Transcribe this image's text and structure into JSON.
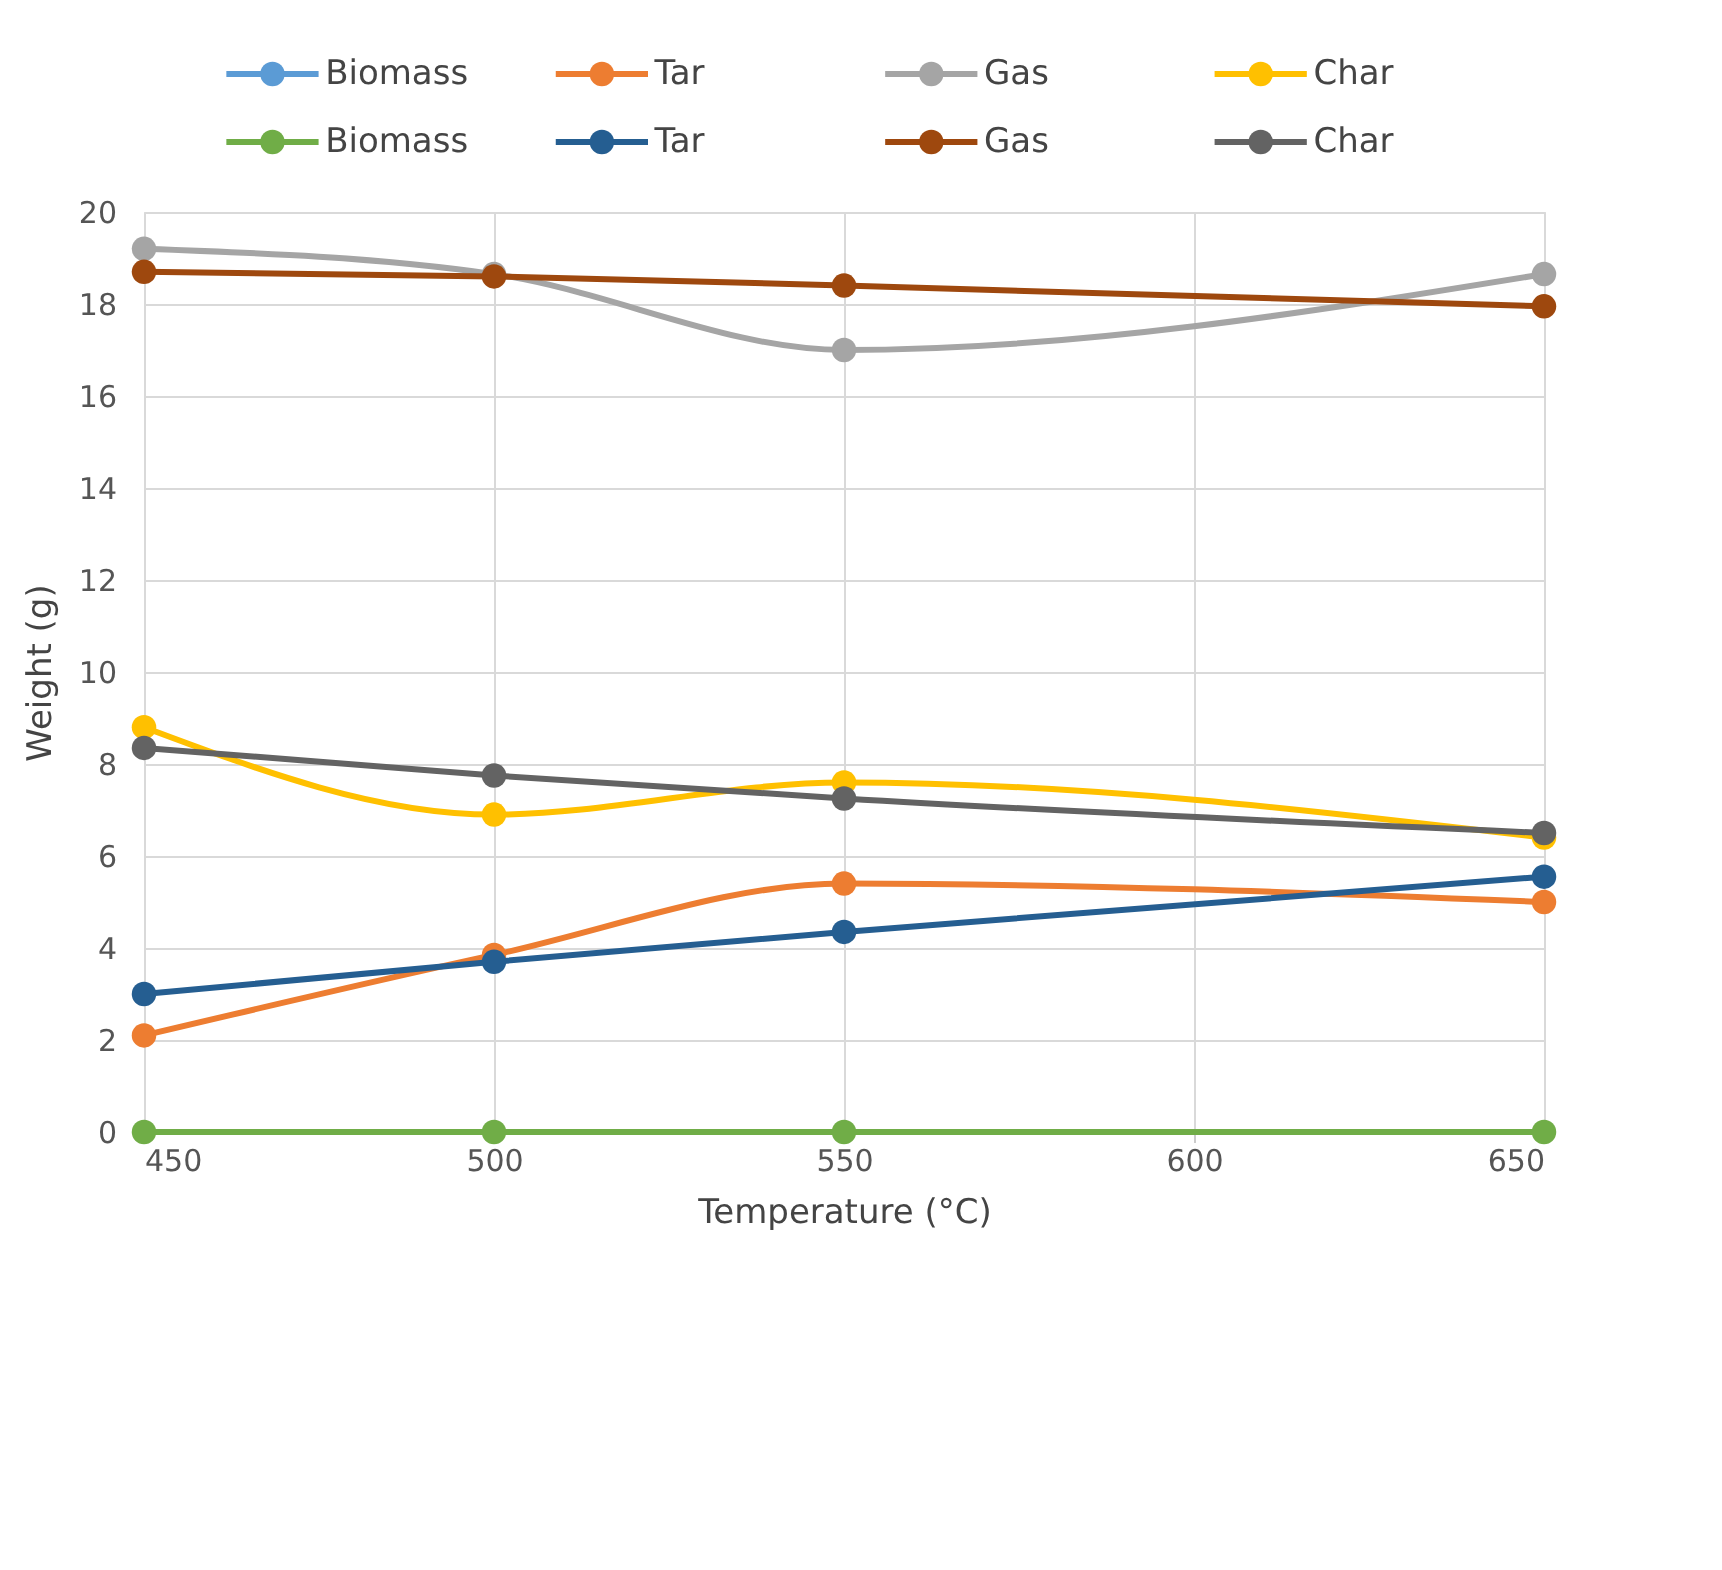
{
  "chart_data": {
    "type": "line",
    "xlabel": "Temperature (°C)",
    "ylabel": "Weight (g)",
    "x": [
      450,
      500,
      550,
      650
    ],
    "xlim": [
      450,
      650
    ],
    "xticks": [
      450,
      500,
      550,
      600,
      650
    ],
    "ylim": [
      0,
      20
    ],
    "yticks": [
      0,
      2,
      4,
      6,
      8,
      10,
      12,
      14,
      16,
      18,
      20
    ],
    "grid": true,
    "legend": "top",
    "marker": "circle",
    "line_style": "solid",
    "series": [
      {
        "name": "Biomass",
        "color": "#5b9bd5",
        "values": [
          null,
          null,
          null,
          null
        ]
      },
      {
        "name": "Tar",
        "color": "#ed7d31",
        "values": [
          2.1,
          3.85,
          5.4,
          5.0
        ]
      },
      {
        "name": "Gas",
        "color": "#a5a5a5",
        "values": [
          19.2,
          18.65,
          17.0,
          18.65
        ]
      },
      {
        "name": "Char",
        "color": "#ffc000",
        "values": [
          8.8,
          6.9,
          7.6,
          6.4
        ]
      },
      {
        "name": "Biomass",
        "color": "#70ad47",
        "values": [
          0,
          0,
          0,
          0
        ]
      },
      {
        "name": "Tar",
        "color": "#255e91",
        "values": [
          3.0,
          3.7,
          4.35,
          5.55
        ]
      },
      {
        "name": "Gas",
        "color": "#9e480e",
        "values": [
          18.7,
          18.6,
          18.4,
          17.95
        ]
      },
      {
        "name": "Char",
        "color": "#636363",
        "values": [
          8.35,
          7.75,
          7.25,
          6.5
        ]
      }
    ]
  }
}
